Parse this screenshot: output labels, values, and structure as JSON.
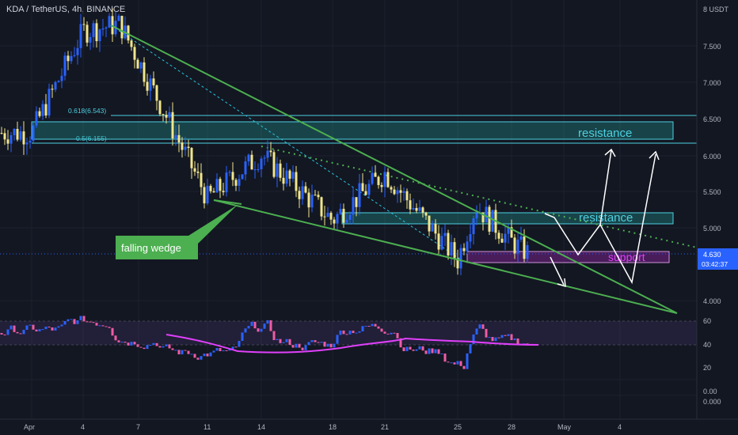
{
  "header": {
    "title": "KDA / TetherUS, 4h, BINANCE"
  },
  "price_axis": {
    "currency_label": "8 USDT",
    "ticks": [
      "7.500",
      "7.000",
      "6.500",
      "6.000",
      "5.500",
      "5.000",
      "4.000"
    ],
    "current_price": "4.630",
    "countdown": "03:42:37"
  },
  "rsi_axis": {
    "ticks": [
      "60",
      "40",
      "20",
      "0.00",
      "0.000"
    ]
  },
  "time_axis": {
    "ticks": [
      "Apr",
      "4",
      "7",
      "11",
      "14",
      "18",
      "21",
      "25",
      "28",
      "May",
      "4"
    ]
  },
  "annotations": {
    "fib_618": "0.618(6.543)",
    "fib_5": "0.5(6.155)",
    "resistance_upper": "resistance",
    "resistance_lower": "resistance",
    "support": "support",
    "pattern_callout": "falling wedge"
  },
  "colors": {
    "background": "#131722",
    "bull": "#2962ff",
    "bear": "#f0e68c",
    "zone": "#26a69a",
    "zone_border": "#4dd0e1",
    "wedge": "#4caf50",
    "support_zone": "#9c27b0",
    "rsi_ma": "#e040fb",
    "price_tag": "#2962ff"
  },
  "chart_data": {
    "type": "candlestick",
    "symbol": "KDA / TetherUS",
    "interval": "4h",
    "exchange": "BINANCE",
    "ylim": [
      3.85,
      8.0
    ],
    "key_points": [
      {
        "t": "Apr 1",
        "price": 6.3
      },
      {
        "t": "Apr 4",
        "price": 7.7
      },
      {
        "t": "Apr 6",
        "price": 7.8
      },
      {
        "t": "Apr 11",
        "price": 5.4
      },
      {
        "t": "Apr 14",
        "price": 6.0
      },
      {
        "t": "Apr 18",
        "price": 5.1
      },
      {
        "t": "Apr 21",
        "price": 5.75
      },
      {
        "t": "Apr 25",
        "price": 4.55
      },
      {
        "t": "Apr 26",
        "price": 5.3
      },
      {
        "t": "Apr 28",
        "price": 4.8
      },
      {
        "t": "Apr 29",
        "price": 4.63
      }
    ],
    "levels": {
      "fib_0.618": 6.543,
      "fib_0.5": 6.155,
      "resistance_zone_upper": [
        6.17,
        6.45
      ],
      "resistance_zone_lower": [
        5.05,
        5.2
      ],
      "support_zone": [
        4.52,
        4.65
      ]
    },
    "rsi": {
      "ylim": [
        -10,
        65
      ],
      "band": [
        40,
        60
      ]
    }
  }
}
